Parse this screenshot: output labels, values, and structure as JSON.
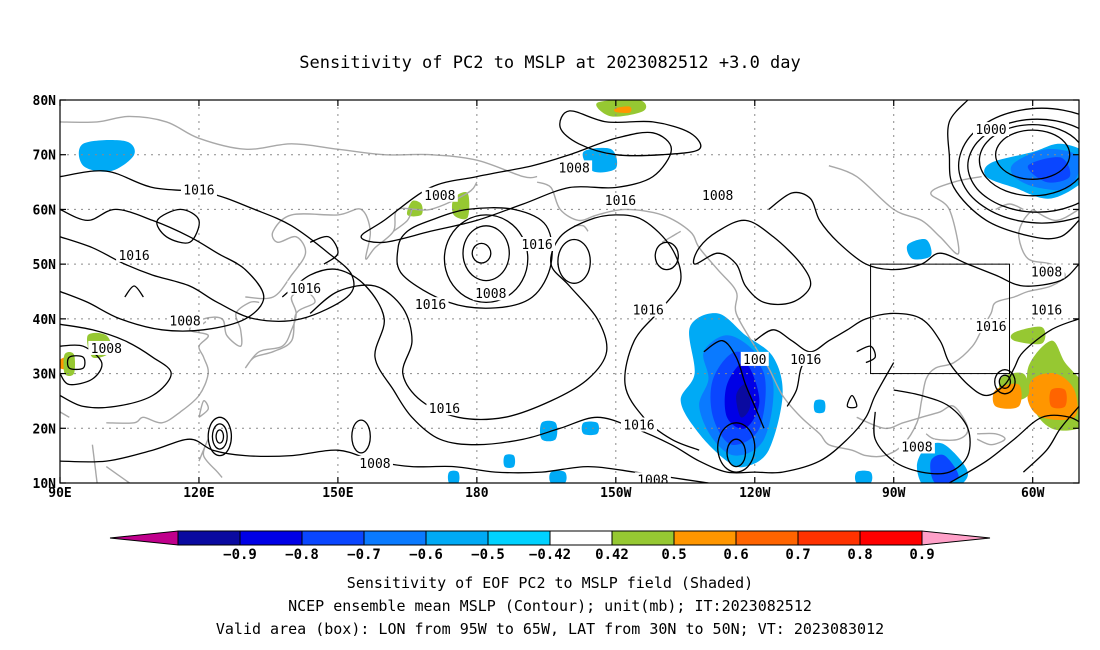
{
  "title": "Sensitivity of PC2 to MSLP at 2023082512 +3.0 day",
  "caption": [
    "Sensitivity of EOF PC2 to MSLP field (Shaded)",
    "NCEP ensemble mean MSLP (Contour); unit(mb); IT:2023082512",
    "Valid area (box): LON from 95W to 65W, LAT from 30N to 50N; VT: 2023083012"
  ],
  "map": {
    "lon_range": [
      90,
      310
    ],
    "lat_range": [
      10,
      80
    ],
    "lat_ticks": [
      {
        "lat": 80,
        "label": "80N"
      },
      {
        "lat": 70,
        "label": "70N"
      },
      {
        "lat": 60,
        "label": "60N"
      },
      {
        "lat": 50,
        "label": "50N"
      },
      {
        "lat": 40,
        "label": "40N"
      },
      {
        "lat": 30,
        "label": "30N"
      },
      {
        "lat": 20,
        "label": "20N"
      },
      {
        "lat": 10,
        "label": "10N"
      }
    ],
    "lon_ticks": [
      {
        "lon": 90,
        "label": "90E"
      },
      {
        "lon": 120,
        "label": "120E"
      },
      {
        "lon": 150,
        "label": "150E"
      },
      {
        "lon": 180,
        "label": "180"
      },
      {
        "lon": 210,
        "label": "150W"
      },
      {
        "lon": 240,
        "label": "120W"
      },
      {
        "lon": 270,
        "label": "90W"
      },
      {
        "lon": 300,
        "label": "60W"
      }
    ],
    "grid_lines": true,
    "valid_box": {
      "lon": [
        265,
        295
      ],
      "lat": [
        30,
        50
      ]
    },
    "colors": {
      "coast": "#a8a8a8",
      "contour": "#000000",
      "grid": "#8a8a8a"
    }
  },
  "contour_labels": [
    {
      "text": "1000",
      "lon": 291,
      "lat": 74.5
    },
    {
      "text": "1008",
      "lon": 201,
      "lat": 67.5
    },
    {
      "text": "1008",
      "lon": 232,
      "lat": 62.5
    },
    {
      "text": "1016",
      "lon": 211,
      "lat": 61.5
    },
    {
      "text": "1016",
      "lon": 120,
      "lat": 63.5
    },
    {
      "text": "1008",
      "lon": 172,
      "lat": 62.5
    },
    {
      "text": "1016",
      "lon": 193,
      "lat": 53.5
    },
    {
      "text": "1016",
      "lon": 106,
      "lat": 51.5
    },
    {
      "text": "1016",
      "lon": 143,
      "lat": 45.5
    },
    {
      "text": "1016",
      "lon": 170,
      "lat": 42.5
    },
    {
      "text": "1008",
      "lon": 183,
      "lat": 44.5
    },
    {
      "text": "1008",
      "lon": 117,
      "lat": 39.5
    },
    {
      "text": "1008",
      "lon": 100,
      "lat": 34.5
    },
    {
      "text": "1016",
      "lon": 217,
      "lat": 41.5
    },
    {
      "text": "1008",
      "lon": 303,
      "lat": 48.5
    },
    {
      "text": "1016",
      "lon": 303,
      "lat": 41.5
    },
    {
      "text": "1016",
      "lon": 291,
      "lat": 38.5
    },
    {
      "text": "1016",
      "lon": 251,
      "lat": 32.5
    },
    {
      "text": "100",
      "lon": 240,
      "lat": 32.5
    },
    {
      "text": "1016",
      "lon": 173,
      "lat": 23.5
    },
    {
      "text": "1016",
      "lon": 215,
      "lat": 20.5
    },
    {
      "text": "1008",
      "lon": 275,
      "lat": 16.5
    },
    {
      "text": "1008",
      "lon": 158,
      "lat": 13.5
    },
    {
      "text": "1008",
      "lon": 218,
      "lat": 10.5
    }
  ],
  "colorbar": {
    "labels": [
      "-0.9",
      "-0.8",
      "-0.7",
      "-0.6",
      "-0.5",
      "-0.42",
      "0.42",
      "0.5",
      "0.6",
      "0.7",
      "0.8",
      "0.9"
    ],
    "colors": [
      "#c0008c",
      "#0a0aa0",
      "#0000e6",
      "#0a46ff",
      "#0a7aff",
      "#00aaf5",
      "#00d2ff",
      "#ffffff",
      "#96c832",
      "#ff9600",
      "#ff6400",
      "#ff3200",
      "#ff0000",
      "#ffa0c8"
    ]
  }
}
